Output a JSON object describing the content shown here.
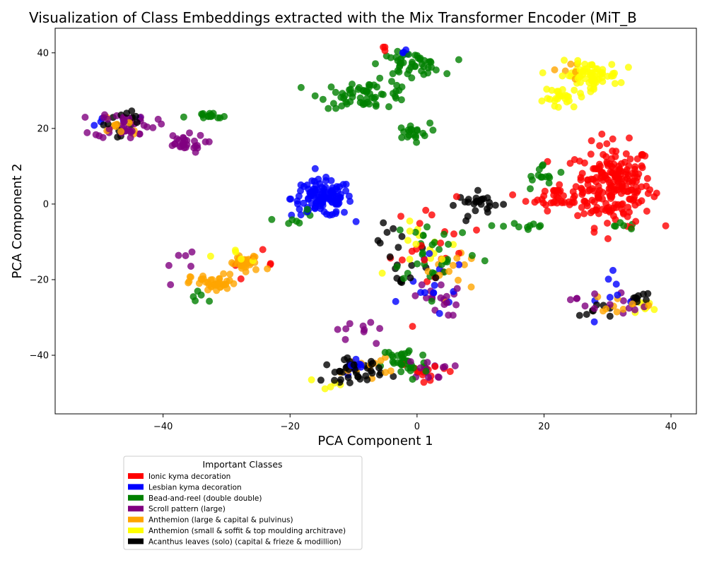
{
  "chart_data": {
    "type": "scatter",
    "title": "Visualization of Class Embeddings extracted with the Mix Transformer Encoder (MiT_B",
    "xlabel": "PCA Component 1",
    "ylabel": "PCA Component 2",
    "xlim": [
      -57,
      44
    ],
    "ylim": [
      -55.5,
      46.5
    ],
    "xticks": [
      -40,
      -20,
      0,
      20,
      40
    ],
    "yticks": [
      -40,
      -20,
      0,
      20,
      40
    ],
    "grid": false,
    "legend": {
      "title": "Important Classes",
      "placement": "below-left"
    },
    "series": [
      {
        "name": "Ionic kyma decoration",
        "color": "#ff0000",
        "clusters": [
          {
            "center": [
              31,
              5
            ],
            "spread": [
              5,
              9
            ],
            "count": 210
          },
          {
            "center": [
              22,
              2
            ],
            "spread": [
              4,
              3
            ],
            "count": 40
          },
          {
            "center": [
              3,
              -12
            ],
            "spread": [
              6,
              10
            ],
            "count": 22
          },
          {
            "center": [
              2,
              -44
            ],
            "spread": [
              4,
              2
            ],
            "count": 14
          },
          {
            "center": [
              -26,
              -16
            ],
            "spread": [
              3,
              3
            ],
            "count": 6
          },
          {
            "center": [
              -5,
              41
            ],
            "spread": [
              0.6,
              0.6
            ],
            "count": 3
          }
        ]
      },
      {
        "name": "Lesbian kyma decoration",
        "color": "#0000ff",
        "clusters": [
          {
            "center": [
              -15,
              1.5
            ],
            "spread": [
              4,
              4
            ],
            "count": 120
          },
          {
            "center": [
              3,
              -22
            ],
            "spread": [
              4,
              7
            ],
            "count": 14
          },
          {
            "center": [
              -10,
              -44
            ],
            "spread": [
              2,
              2
            ],
            "count": 10
          },
          {
            "center": [
              32,
              -22
            ],
            "spread": [
              3,
              6
            ],
            "count": 8
          },
          {
            "center": [
              -2,
              40
            ],
            "spread": [
              2,
              1
            ],
            "count": 4
          },
          {
            "center": [
              -48,
              22
            ],
            "spread": [
              3,
              2
            ],
            "count": 5
          }
        ]
      },
      {
        "name": "Bead-and-reel (double double)",
        "color": "#008000",
        "clusters": [
          {
            "center": [
              -8,
              29
            ],
            "spread": [
              6,
              3
            ],
            "count": 60
          },
          {
            "center": [
              -1,
              37
            ],
            "spread": [
              4,
              2.5
            ],
            "count": 45
          },
          {
            "center": [
              -1,
              19
            ],
            "spread": [
              2.5,
              2
            ],
            "count": 20
          },
          {
            "center": [
              -33,
              23
            ],
            "spread": [
              3,
              1
            ],
            "count": 15
          },
          {
            "center": [
              -2,
              -42
            ],
            "spread": [
              3,
              4
            ],
            "count": 35
          },
          {
            "center": [
              3,
              -12
            ],
            "spread": [
              6,
              8
            ],
            "count": 30
          },
          {
            "center": [
              20,
              7
            ],
            "spread": [
              3,
              3
            ],
            "count": 14
          },
          {
            "center": [
              17,
              -6
            ],
            "spread": [
              3,
              2
            ],
            "count": 10
          },
          {
            "center": [
              31,
              -6
            ],
            "spread": [
              3,
              1
            ],
            "count": 6
          },
          {
            "center": [
              -19,
              -3
            ],
            "spread": [
              3,
              3
            ],
            "count": 8
          },
          {
            "center": [
              -34,
              -24
            ],
            "spread": [
              2,
              2
            ],
            "count": 5
          }
        ]
      },
      {
        "name": "Scroll pattern (large)",
        "color": "#800080",
        "clusters": [
          {
            "center": [
              -46,
              21
            ],
            "spread": [
              4,
              3
            ],
            "count": 40
          },
          {
            "center": [
              -37,
              16
            ],
            "spread": [
              3,
              2
            ],
            "count": 28
          },
          {
            "center": [
              3,
              -25
            ],
            "spread": [
              3,
              4
            ],
            "count": 18
          },
          {
            "center": [
              2,
              -44
            ],
            "spread": [
              3,
              2
            ],
            "count": 14
          },
          {
            "center": [
              -9,
              -33
            ],
            "spread": [
              3,
              5
            ],
            "count": 10
          },
          {
            "center": [
              30,
              -26
            ],
            "spread": [
              5,
              3
            ],
            "count": 14
          },
          {
            "center": [
              -38,
              -16
            ],
            "spread": [
              3,
              4
            ],
            "count": 6
          }
        ]
      },
      {
        "name": "Anthemion (large & capital & pulvinus)",
        "color": "#ffa500",
        "clusters": [
          {
            "center": [
              -32,
              -21
            ],
            "spread": [
              3,
              2
            ],
            "count": 40
          },
          {
            "center": [
              -27,
              -16
            ],
            "spread": [
              2.5,
              2
            ],
            "count": 30
          },
          {
            "center": [
              -47,
              21
            ],
            "spread": [
              3,
              3
            ],
            "count": 12
          },
          {
            "center": [
              -8,
              -43
            ],
            "spread": [
              3,
              2
            ],
            "count": 14
          },
          {
            "center": [
              6,
              -18
            ],
            "spread": [
              4,
              6
            ],
            "count": 12
          },
          {
            "center": [
              33,
              -26
            ],
            "spread": [
              4,
              2
            ],
            "count": 10
          },
          {
            "center": [
              24,
              35
            ],
            "spread": [
              2,
              2
            ],
            "count": 6
          }
        ]
      },
      {
        "name": "Anthemion (small & soffit & top moulding architrave)",
        "color": "#ffff00",
        "clusters": [
          {
            "center": [
              27,
              34
            ],
            "spread": [
              4,
              3
            ],
            "count": 70
          },
          {
            "center": [
              23,
              28
            ],
            "spread": [
              2.5,
              2.5
            ],
            "count": 25
          },
          {
            "center": [
              36,
              -27
            ],
            "spread": [
              2,
              1
            ],
            "count": 8
          },
          {
            "center": [
              3,
              -12
            ],
            "spread": [
              5,
              6
            ],
            "count": 14
          },
          {
            "center": [
              -28,
              -14
            ],
            "spread": [
              2,
              2
            ],
            "count": 6
          },
          {
            "center": [
              -13,
              -48
            ],
            "spread": [
              3,
              2
            ],
            "count": 5
          }
        ]
      },
      {
        "name": "Acanthus leaves (solo) (capital & frieze & modillion)",
        "color": "#000000",
        "clusters": [
          {
            "center": [
              -10,
              -44
            ],
            "spread": [
              4,
              2.5
            ],
            "count": 40
          },
          {
            "center": [
              10,
              0
            ],
            "spread": [
              3,
              2.5
            ],
            "count": 25
          },
          {
            "center": [
              -2,
              -18
            ],
            "spread": [
              3,
              8
            ],
            "count": 14
          },
          {
            "center": [
              -47,
              22
            ],
            "spread": [
              3,
              3
            ],
            "count": 14
          },
          {
            "center": [
              28,
              -28
            ],
            "spread": [
              2,
              2
            ],
            "count": 8
          },
          {
            "center": [
              35,
              -25
            ],
            "spread": [
              1.5,
              2
            ],
            "count": 8
          },
          {
            "center": [
              -4,
              -9
            ],
            "spread": [
              2,
              3
            ],
            "count": 6
          }
        ]
      }
    ]
  }
}
